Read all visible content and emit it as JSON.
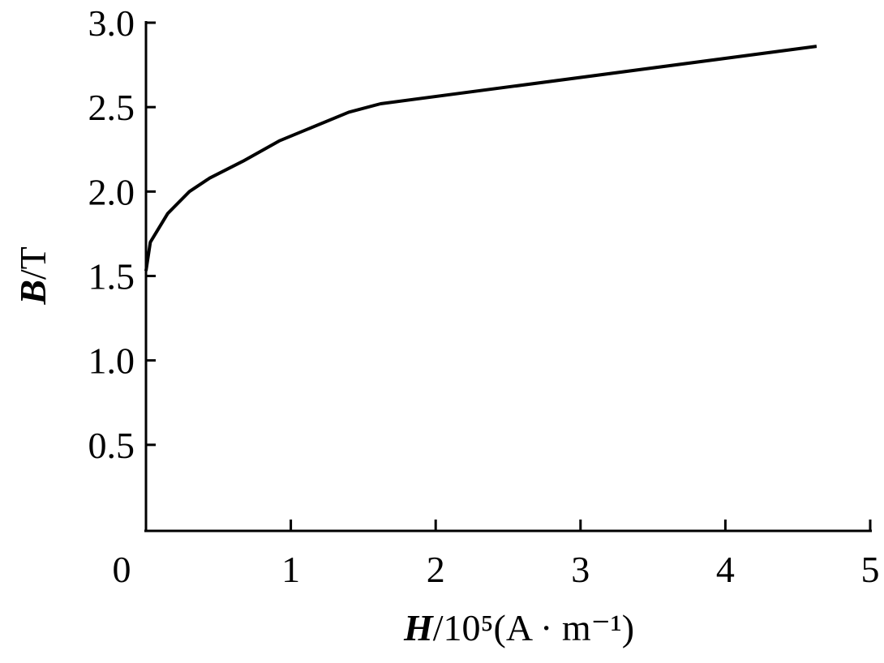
{
  "chart_data": {
    "type": "line",
    "x_label": {
      "symbol": "H",
      "unit": "/10⁵(A · m⁻¹)"
    },
    "y_label": {
      "symbol": "B",
      "unit": "/T"
    },
    "series": [
      {
        "color": "#000000",
        "x": [
          0,
          0.03,
          0.15,
          0.3,
          0.44,
          0.67,
          0.92,
          1.4,
          1.62,
          4.63
        ],
        "values": [
          1.53,
          1.7,
          1.87,
          2.0,
          2.08,
          2.18,
          2.3,
          2.47,
          2.52,
          2.86
        ]
      }
    ],
    "xlim": [
      0,
      5
    ],
    "xticks": [
      0,
      1,
      2,
      3,
      4,
      5
    ],
    "ylim": [
      0,
      3
    ],
    "yticks": [
      0.5,
      {
        "value": 1,
        "label": "1.0"
      },
      1.5,
      {
        "value": 2,
        "label": "2.0"
      },
      2.5,
      {
        "value": 3,
        "label": "3.0"
      }
    ],
    "grid": false
  }
}
